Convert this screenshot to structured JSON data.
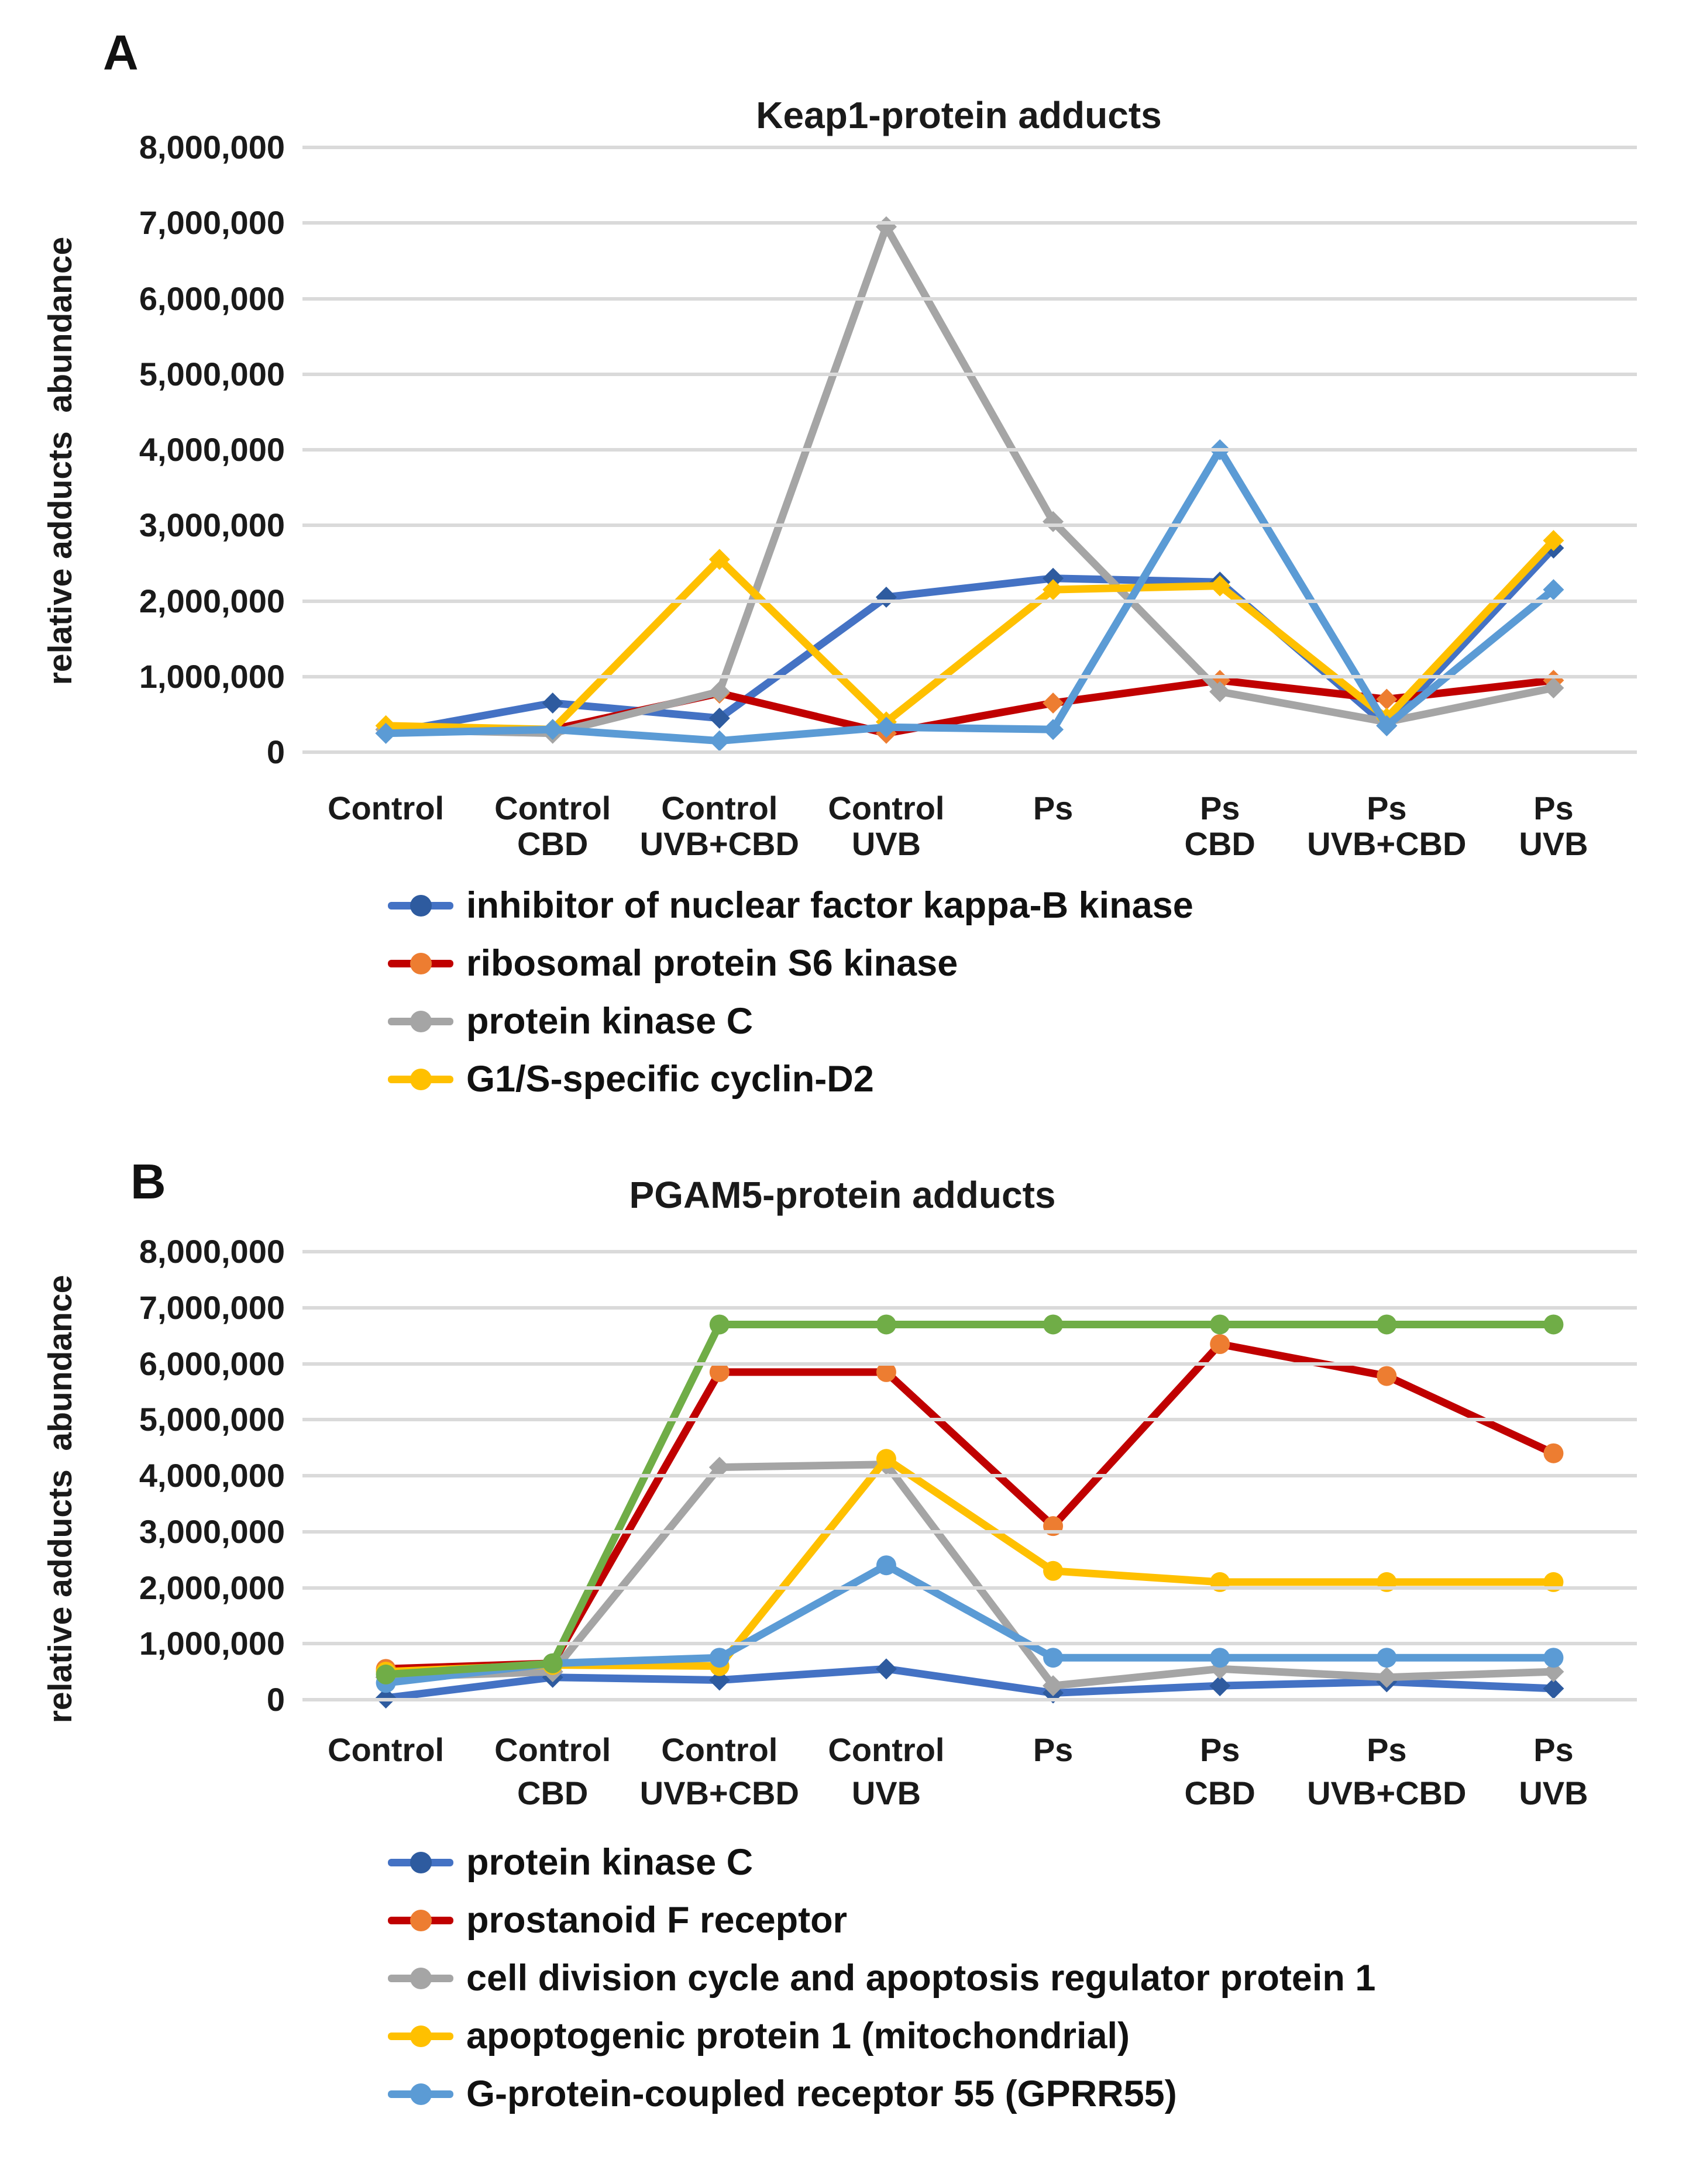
{
  "figure": {
    "background": "#ffffff",
    "text_color": "#161616",
    "gridline_color": "#dadada"
  },
  "panels": [
    {
      "label": "A"
    },
    {
      "label": "B"
    }
  ],
  "chart_data": [
    {
      "type": "line",
      "title": "Keap1-protein adducts",
      "xlabel": "",
      "ylabel": "relative adducts  abundance",
      "ylim": [
        0,
        8000000
      ],
      "grid": true,
      "legend_position": "bottom-left",
      "y_tick_labels": [
        "8,000,000",
        "7,000,000",
        "6,000,000",
        "5,000,000",
        "4,000,000",
        "3,000,000",
        "2,000,000",
        "1,000,000",
        "0"
      ],
      "categories": [
        "Control",
        "Control CBD",
        "Control UVB+CBD",
        "Control UVB",
        "Ps",
        "Ps CBD",
        "Ps UVB+CBD",
        "Ps UVB"
      ],
      "x_labels_line1": [
        "Control",
        "Control",
        "Control",
        "Control",
        "Ps",
        "Ps",
        "Ps",
        "Ps"
      ],
      "x_labels_line2": [
        "",
        "CBD",
        "UVB+CBD",
        "UVB",
        "",
        "CBD",
        "UVB+CBD",
        "UVB"
      ],
      "series": [
        {
          "name": "inhibitor of nuclear factor kappa-B kinase",
          "color": "#4472C4",
          "marker_color": "#2E5B9F",
          "marker": "diamond",
          "values": [
            250000,
            650000,
            450000,
            2050000,
            2300000,
            2250000,
            350000,
            2700000
          ]
        },
        {
          "name": "ribosomal protein S6 kinase",
          "color": "#C00000",
          "marker_color": "#ED7D31",
          "marker": "diamond",
          "values": [
            300000,
            300000,
            780000,
            250000,
            650000,
            950000,
            700000,
            950000
          ]
        },
        {
          "name": "protein kinase C",
          "color": "#A5A5A5",
          "marker_color": "#A5A5A5",
          "marker": "diamond",
          "values": [
            300000,
            250000,
            800000,
            6950000,
            3050000,
            800000,
            400000,
            850000
          ]
        },
        {
          "name": "G1/S-specific cyclin-D2",
          "color": "#FFC000",
          "marker_color": "#FFC000",
          "marker": "diamond",
          "values": [
            350000,
            300000,
            2550000,
            400000,
            2150000,
            2200000,
            450000,
            2800000
          ]
        },
        {
          "name": "",
          "color": "#5B9BD5",
          "marker_color": "#5B9BD5",
          "marker": "diamond",
          "values": [
            250000,
            300000,
            150000,
            330000,
            300000,
            4000000,
            350000,
            2150000
          ]
        }
      ]
    },
    {
      "type": "line",
      "title": "PGAM5-protein adducts",
      "xlabel": "",
      "ylabel": "relative adducts  abundance",
      "ylim": [
        0,
        8000000
      ],
      "grid": true,
      "legend_position": "bottom-left",
      "y_tick_labels": [
        "8,000,000",
        "7,000,000",
        "6,000,000",
        "5,000,000",
        "4,000,000",
        "3,000,000",
        "2,000,000",
        "1,000,000",
        "0"
      ],
      "categories": [
        "Control",
        "Control CBD",
        "Control UVB+CBD",
        "Control UVB",
        "Ps",
        "Ps CBD",
        "Ps UVB+CBD",
        "Ps UVB"
      ],
      "x_labels_line1": [
        "Control",
        "Control",
        "Control",
        "Control",
        "Ps",
        "Ps",
        "Ps",
        "Ps"
      ],
      "x_labels_line2": [
        "",
        "CBD",
        "UVB+CBD",
        "UVB",
        "",
        "CBD",
        "UVB+CBD",
        "UVB"
      ],
      "series": [
        {
          "name": "protein kinase C",
          "color": "#4472C4",
          "marker_color": "#2E5B9F",
          "marker": "diamond",
          "values": [
            30000,
            400000,
            350000,
            550000,
            120000,
            250000,
            320000,
            200000
          ]
        },
        {
          "name": "prostanoid F receptor",
          "color": "#C00000",
          "marker_color": "#ED7D31",
          "marker": "circle",
          "values": [
            550000,
            650000,
            5850000,
            5850000,
            3100000,
            6350000,
            5780000,
            4400000
          ]
        },
        {
          "name": "cell division cycle and apoptosis regulator protein 1",
          "color": "#A5A5A5",
          "marker_color": "#A5A5A5",
          "marker": "diamond",
          "values": [
            400000,
            500000,
            4150000,
            4200000,
            250000,
            550000,
            400000,
            500000
          ]
        },
        {
          "name": "apoptogenic protein 1 (mitochondrial)",
          "color": "#FFC000",
          "marker_color": "#FFC000",
          "marker": "circle",
          "values": [
            500000,
            620000,
            600000,
            4300000,
            2300000,
            2100000,
            2100000,
            2100000
          ]
        },
        {
          "name": "G-protein-coupled receptor 55 (GPRR55)",
          "color": "#5B9BD5",
          "marker_color": "#5B9BD5",
          "marker": "circle",
          "values": [
            300000,
            650000,
            750000,
            2400000,
            750000,
            750000,
            750000,
            750000
          ]
        },
        {
          "name": "",
          "color": "#70AD47",
          "marker_color": "#70AD47",
          "marker": "circle",
          "values": [
            450000,
            650000,
            6700000,
            6700000,
            6700000,
            6700000,
            6700000,
            6700000
          ]
        }
      ]
    }
  ]
}
